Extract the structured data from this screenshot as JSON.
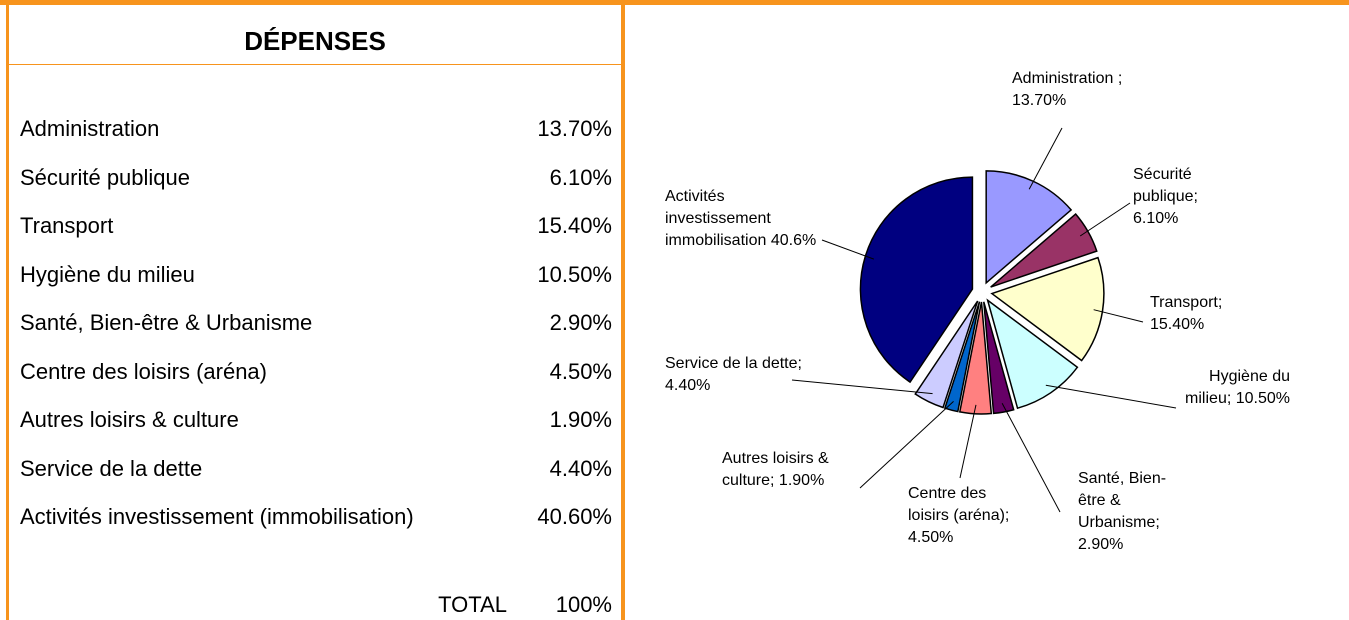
{
  "table": {
    "title": "DÉPENSES",
    "rows": [
      [
        "Administration",
        "13.70%"
      ],
      [
        "Sécurité publique",
        "6.10%"
      ],
      [
        "Transport",
        "15.40%"
      ],
      [
        "Hygiène du milieu",
        "10.50%"
      ],
      [
        "Santé, Bien-être & Urbanisme",
        "2.90%"
      ],
      [
        "Centre des loisirs (aréna)",
        "4.50%"
      ],
      [
        "Autres loisirs & culture",
        "1.90%"
      ],
      [
        "Service de la dette",
        "4.40%"
      ],
      [
        "Activités investissement (immobilisation)",
        "40.60%"
      ]
    ],
    "total": [
      "TOTAL",
      "100%"
    ]
  },
  "chart_data": {
    "type": "pie",
    "categories": [
      "Administration ;",
      "Sécurité publique;",
      "Transport;",
      "Hygiène du milieu;",
      "Santé, Bien-être & Urbanisme;",
      "Centre des loisirs (aréna);",
      "Autres loisirs & culture;",
      "Service de la dette;",
      "Activités investissement immobilisation"
    ],
    "values": [
      13.7,
      6.1,
      15.4,
      10.5,
      2.9,
      4.5,
      1.9,
      4.4,
      40.6
    ],
    "value_labels": [
      "13.70%",
      "6.10%",
      "15.40%",
      "10.50%",
      "2.90%",
      "4.50%",
      "1.90%",
      "4.40%",
      "40.6%"
    ],
    "colors": [
      "#9999ff",
      "#993366",
      "#ffffcc",
      "#ccffff",
      "#660066",
      "#ff8080",
      "#0066cc",
      "#ccccff",
      "#000080"
    ]
  }
}
